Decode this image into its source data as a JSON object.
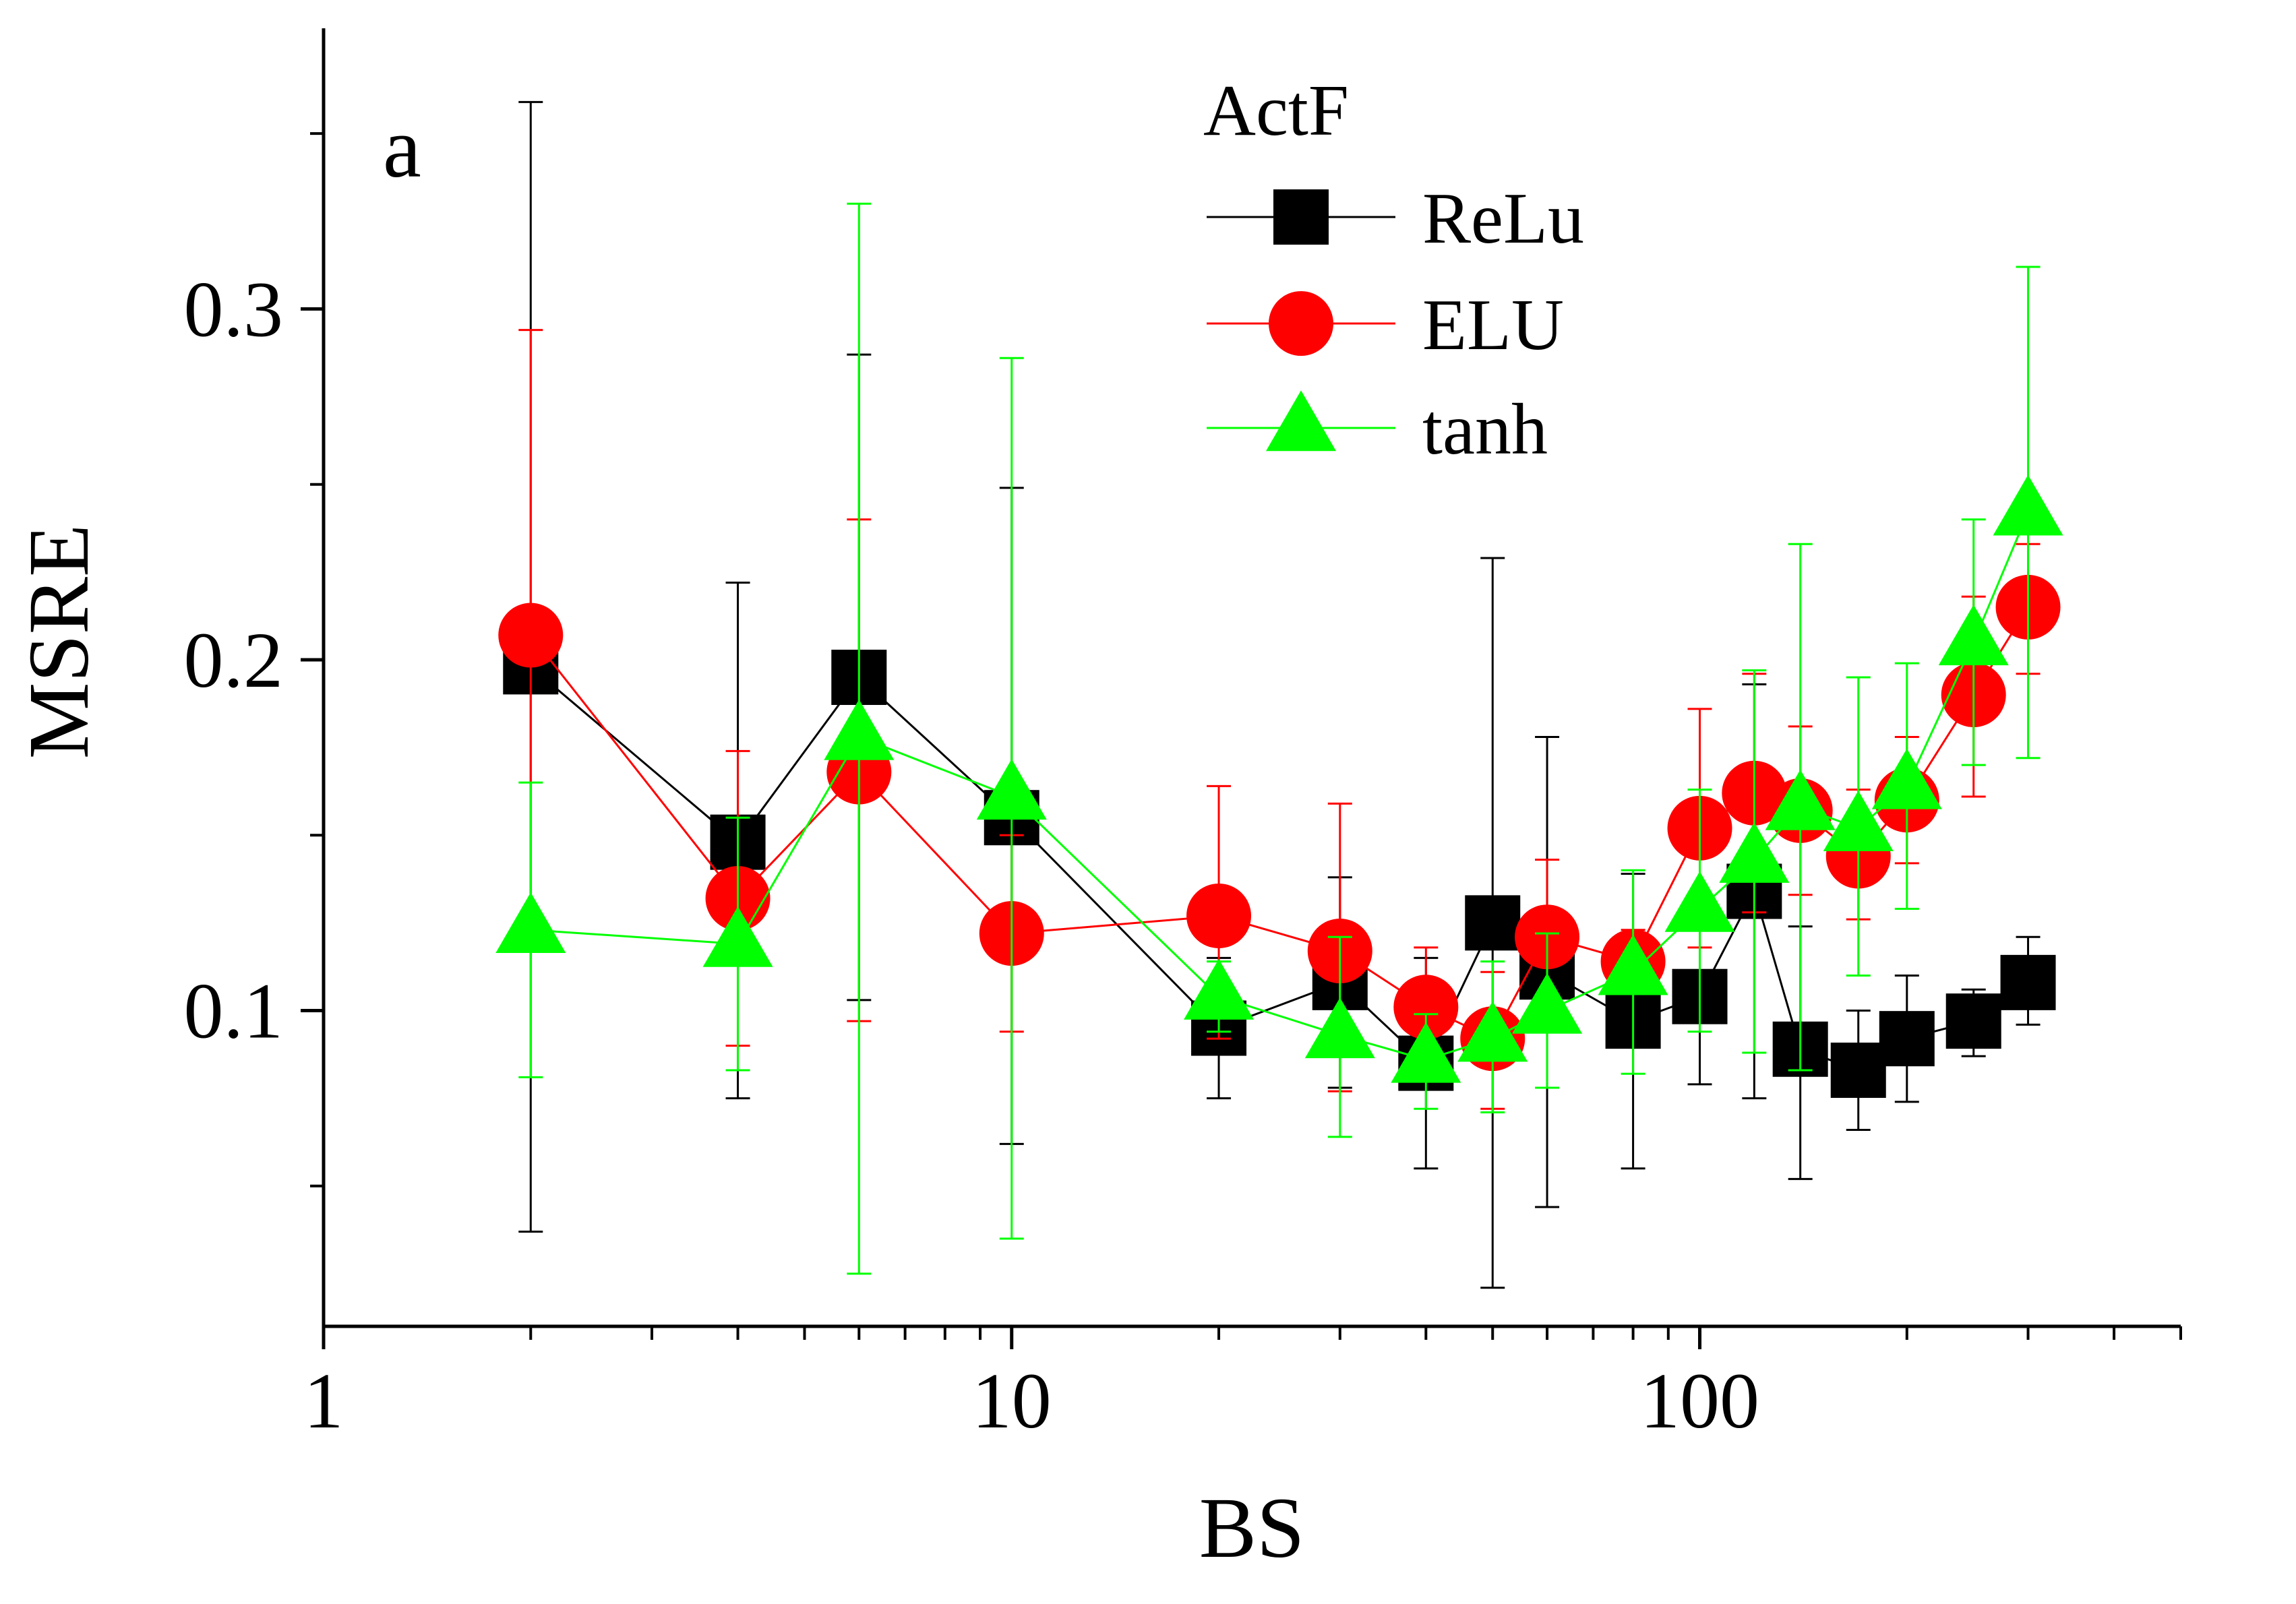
{
  "chart_data": {
    "type": "scatter",
    "panel_label": "a",
    "xlabel": "BS",
    "ylabel": "MSRE",
    "x_scale": "log",
    "xlim": [
      1,
      500
    ],
    "ylim": [
      0.01,
      0.38
    ],
    "x_ticks": [
      {
        "value": 1,
        "label": "1"
      },
      {
        "value": 10,
        "label": "10"
      },
      {
        "value": 100,
        "label": "100"
      }
    ],
    "y_ticks": [
      {
        "value": 0.1,
        "label": "0.1"
      },
      {
        "value": 0.2,
        "label": "0.2"
      },
      {
        "value": 0.3,
        "label": "0.3"
      }
    ],
    "y_minor_ticks": [
      0.05,
      0.15,
      0.25,
      0.35
    ],
    "grid": false,
    "legend": {
      "title": "ActF",
      "position": "top-center"
    },
    "series": [
      {
        "name": "ReLu",
        "color": "#000000",
        "marker": "square",
        "points": [
          {
            "x": 2,
            "y": 0.198,
            "lo": 0.037,
            "hi": 0.359
          },
          {
            "x": 4,
            "y": 0.148,
            "lo": 0.075,
            "hi": 0.222
          },
          {
            "x": 6,
            "y": 0.195,
            "lo": 0.103,
            "hi": 0.287
          },
          {
            "x": 10,
            "y": 0.155,
            "lo": 0.062,
            "hi": 0.249
          },
          {
            "x": 20,
            "y": 0.095,
            "lo": 0.075,
            "hi": 0.115
          },
          {
            "x": 30,
            "y": 0.108,
            "lo": 0.078,
            "hi": 0.138
          },
          {
            "x": 40,
            "y": 0.085,
            "lo": 0.055,
            "hi": 0.115
          },
          {
            "x": 50,
            "y": 0.125,
            "lo": 0.021,
            "hi": 0.229
          },
          {
            "x": 60,
            "y": 0.111,
            "lo": 0.044,
            "hi": 0.178
          },
          {
            "x": 80,
            "y": 0.097,
            "lo": 0.055,
            "hi": 0.139
          },
          {
            "x": 100,
            "y": 0.104,
            "lo": 0.079,
            "hi": 0.129
          },
          {
            "x": 120,
            "y": 0.134,
            "lo": 0.075,
            "hi": 0.193
          },
          {
            "x": 140,
            "y": 0.089,
            "lo": 0.052,
            "hi": 0.124
          },
          {
            "x": 170,
            "y": 0.083,
            "lo": 0.066,
            "hi": 0.1
          },
          {
            "x": 200,
            "y": 0.092,
            "lo": 0.074,
            "hi": 0.11
          },
          {
            "x": 250,
            "y": 0.097,
            "lo": 0.087,
            "hi": 0.106
          },
          {
            "x": 300,
            "y": 0.108,
            "lo": 0.096,
            "hi": 0.121
          }
        ]
      },
      {
        "name": "ELU",
        "color": "#ff0000",
        "marker": "circle",
        "points": [
          {
            "x": 2,
            "y": 0.207,
            "lo": 0.12,
            "hi": 0.294
          },
          {
            "x": 4,
            "y": 0.132,
            "lo": 0.09,
            "hi": 0.174
          },
          {
            "x": 6,
            "y": 0.168,
            "lo": 0.097,
            "hi": 0.24
          },
          {
            "x": 10,
            "y": 0.122,
            "lo": 0.094,
            "hi": 0.15
          },
          {
            "x": 20,
            "y": 0.127,
            "lo": 0.092,
            "hi": 0.164
          },
          {
            "x": 30,
            "y": 0.117,
            "lo": 0.077,
            "hi": 0.159
          },
          {
            "x": 40,
            "y": 0.101,
            "lo": 0.084,
            "hi": 0.118
          },
          {
            "x": 50,
            "y": 0.092,
            "lo": 0.072,
            "hi": 0.111
          },
          {
            "x": 60,
            "y": 0.121,
            "lo": 0.098,
            "hi": 0.143
          },
          {
            "x": 80,
            "y": 0.114,
            "lo": 0.105,
            "hi": 0.123
          },
          {
            "x": 100,
            "y": 0.152,
            "lo": 0.118,
            "hi": 0.186
          },
          {
            "x": 120,
            "y": 0.162,
            "lo": 0.128,
            "hi": 0.196
          },
          {
            "x": 140,
            "y": 0.157,
            "lo": 0.133,
            "hi": 0.181
          },
          {
            "x": 170,
            "y": 0.144,
            "lo": 0.126,
            "hi": 0.163
          },
          {
            "x": 200,
            "y": 0.16,
            "lo": 0.142,
            "hi": 0.178
          },
          {
            "x": 250,
            "y": 0.19,
            "lo": 0.161,
            "hi": 0.218
          },
          {
            "x": 300,
            "y": 0.215,
            "lo": 0.196,
            "hi": 0.233
          }
        ]
      },
      {
        "name": "tanh",
        "color": "#00ff00",
        "marker": "triangle",
        "points": [
          {
            "x": 2,
            "y": 0.123,
            "lo": 0.081,
            "hi": 0.165
          },
          {
            "x": 4,
            "y": 0.119,
            "lo": 0.083,
            "hi": 0.155
          },
          {
            "x": 6,
            "y": 0.178,
            "lo": 0.025,
            "hi": 0.33
          },
          {
            "x": 10,
            "y": 0.161,
            "lo": 0.035,
            "hi": 0.286
          },
          {
            "x": 20,
            "y": 0.104,
            "lo": 0.094,
            "hi": 0.114
          },
          {
            "x": 30,
            "y": 0.093,
            "lo": 0.064,
            "hi": 0.121
          },
          {
            "x": 40,
            "y": 0.086,
            "lo": 0.072,
            "hi": 0.099
          },
          {
            "x": 50,
            "y": 0.092,
            "lo": 0.071,
            "hi": 0.114
          },
          {
            "x": 60,
            "y": 0.1,
            "lo": 0.078,
            "hi": 0.122
          },
          {
            "x": 80,
            "y": 0.111,
            "lo": 0.082,
            "hi": 0.14
          },
          {
            "x": 100,
            "y": 0.129,
            "lo": 0.094,
            "hi": 0.163
          },
          {
            "x": 120,
            "y": 0.143,
            "lo": 0.088,
            "hi": 0.197
          },
          {
            "x": 140,
            "y": 0.158,
            "lo": 0.083,
            "hi": 0.233
          },
          {
            "x": 170,
            "y": 0.152,
            "lo": 0.11,
            "hi": 0.195
          },
          {
            "x": 200,
            "y": 0.164,
            "lo": 0.129,
            "hi": 0.199
          },
          {
            "x": 250,
            "y": 0.205,
            "lo": 0.17,
            "hi": 0.24
          },
          {
            "x": 300,
            "y": 0.242,
            "lo": 0.172,
            "hi": 0.312
          }
        ]
      }
    ]
  }
}
